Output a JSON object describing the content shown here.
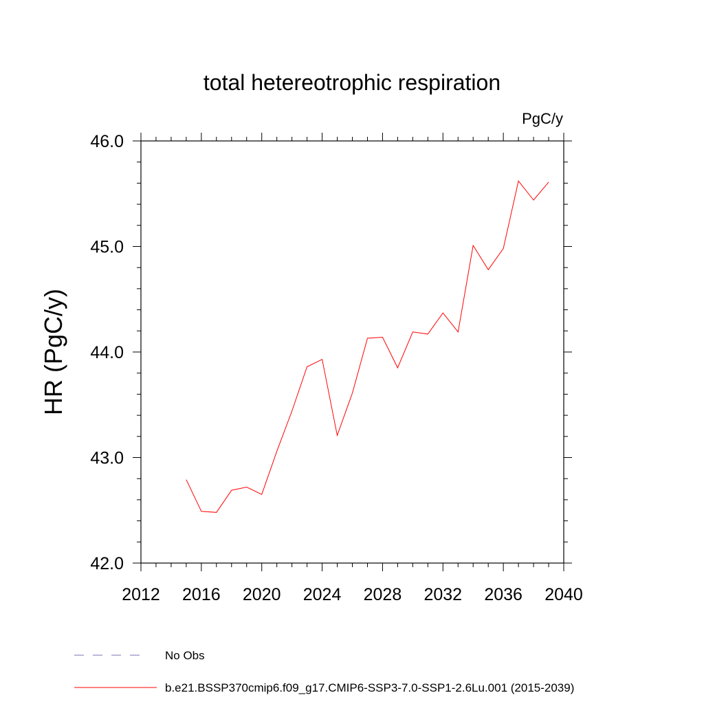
{
  "chart_data": {
    "type": "line",
    "title": "total hetereotrophic respiration",
    "units_label": "PgC/y",
    "xlabel": "",
    "ylabel": "HR  (PgC/y)",
    "xlim": [
      2012,
      2040
    ],
    "ylim": [
      42.0,
      46.0
    ],
    "x_ticks": [
      2012,
      2016,
      2020,
      2024,
      2028,
      2032,
      2036,
      2040
    ],
    "x_tick_labels": [
      "2012",
      "2016",
      "2020",
      "2024",
      "2028",
      "2032",
      "2036",
      "2040"
    ],
    "y_ticks": [
      42.0,
      43.0,
      44.0,
      45.0,
      46.0
    ],
    "y_tick_labels": [
      "42.0",
      "43.0",
      "44.0",
      "45.0",
      "46.0"
    ],
    "grid": false,
    "series": [
      {
        "name": "b.e21.BSSP370cmip6.f09_g17.CMIP6-SSP3-7.0-SSP1-2.6Lu.001 (2015-2039)",
        "color": "#ff0000",
        "x": [
          2015,
          2016,
          2017,
          2018,
          2019,
          2020,
          2021,
          2022,
          2023,
          2024,
          2025,
          2026,
          2027,
          2028,
          2029,
          2030,
          2031,
          2032,
          2033,
          2034,
          2035,
          2036,
          2037,
          2038,
          2039
        ],
        "values": [
          42.79,
          42.49,
          42.48,
          42.69,
          42.72,
          42.65,
          43.06,
          43.44,
          43.86,
          43.93,
          43.21,
          43.61,
          44.13,
          44.14,
          43.85,
          44.19,
          44.17,
          44.37,
          44.19,
          45.01,
          44.78,
          44.98,
          45.62,
          45.44,
          45.61
        ]
      }
    ],
    "legend": [
      {
        "label": "No Obs",
        "color": "#7a6fb0",
        "style": "dashed"
      },
      {
        "label": "b.e21.BSSP370cmip6.f09_g17.CMIP6-SSP3-7.0-SSP1-2.6Lu.001 (2015-2039)",
        "color": "#ff0000",
        "style": "solid"
      }
    ],
    "legend_position": "bottom-left"
  }
}
